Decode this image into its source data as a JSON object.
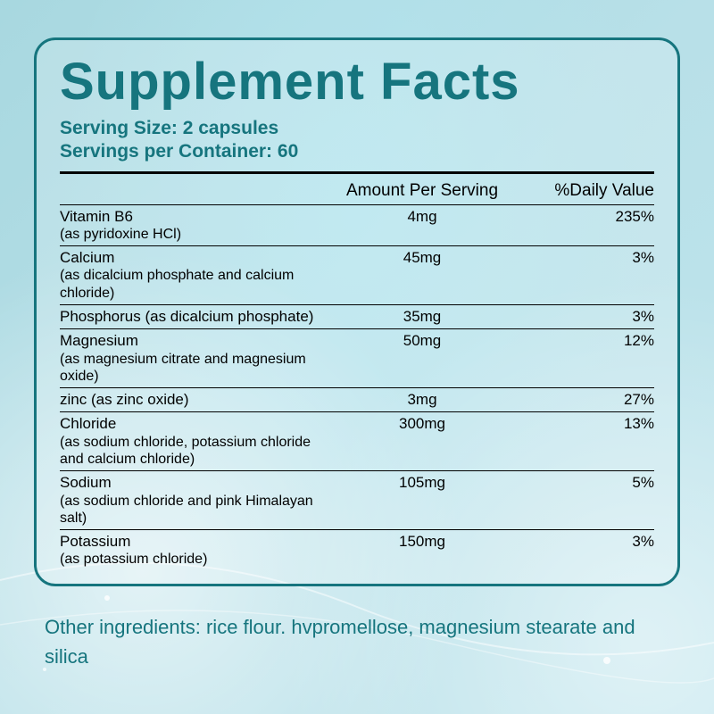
{
  "colors": {
    "brand": "#16757e",
    "text": "#1a1a1a",
    "border": "#000000"
  },
  "title": "Supplement Facts",
  "serving_size_label": "Serving Size:",
  "serving_size_value": "2 capsules",
  "servings_per_label": "Servings per Container:",
  "servings_per_value": "60",
  "headers": {
    "amount": "Amount Per Serving",
    "dv": "%Daily Value"
  },
  "rows": [
    {
      "name": "Vitamin B6",
      "sub": "(as pyridoxine HCl)",
      "amount": "4mg",
      "dv": "235%"
    },
    {
      "name": "Calcium",
      "sub": "(as dicalcium phosphate and calcium chloride)",
      "amount": "45mg",
      "dv": "3%"
    },
    {
      "name": "Phosphorus (as dicalcium phosphate)",
      "sub": "",
      "amount": "35mg",
      "dv": "3%"
    },
    {
      "name": "Magnesium",
      "sub": "(as magnesium citrate and magnesium oxide)",
      "amount": "50mg",
      "dv": "12%"
    },
    {
      "name": "zinc (as zinc oxide)",
      "sub": "",
      "amount": "3mg",
      "dv": "27%"
    },
    {
      "name": "Chloride",
      "sub": "(as sodium chloride, potassium chloride and calcium chloride)",
      "amount": "300mg",
      "dv": "13%"
    },
    {
      "name": "Sodium",
      "sub": "(as sodium chloride and pink Himalayan salt)",
      "amount": "105mg",
      "dv": "5%"
    },
    {
      "name": "Potassium",
      "sub": "(as potassium chloride)",
      "amount": "150mg",
      "dv": "3%"
    }
  ],
  "footer": "Other ingredients: rice flour. hvpromellose, magnesium stearate and silica"
}
